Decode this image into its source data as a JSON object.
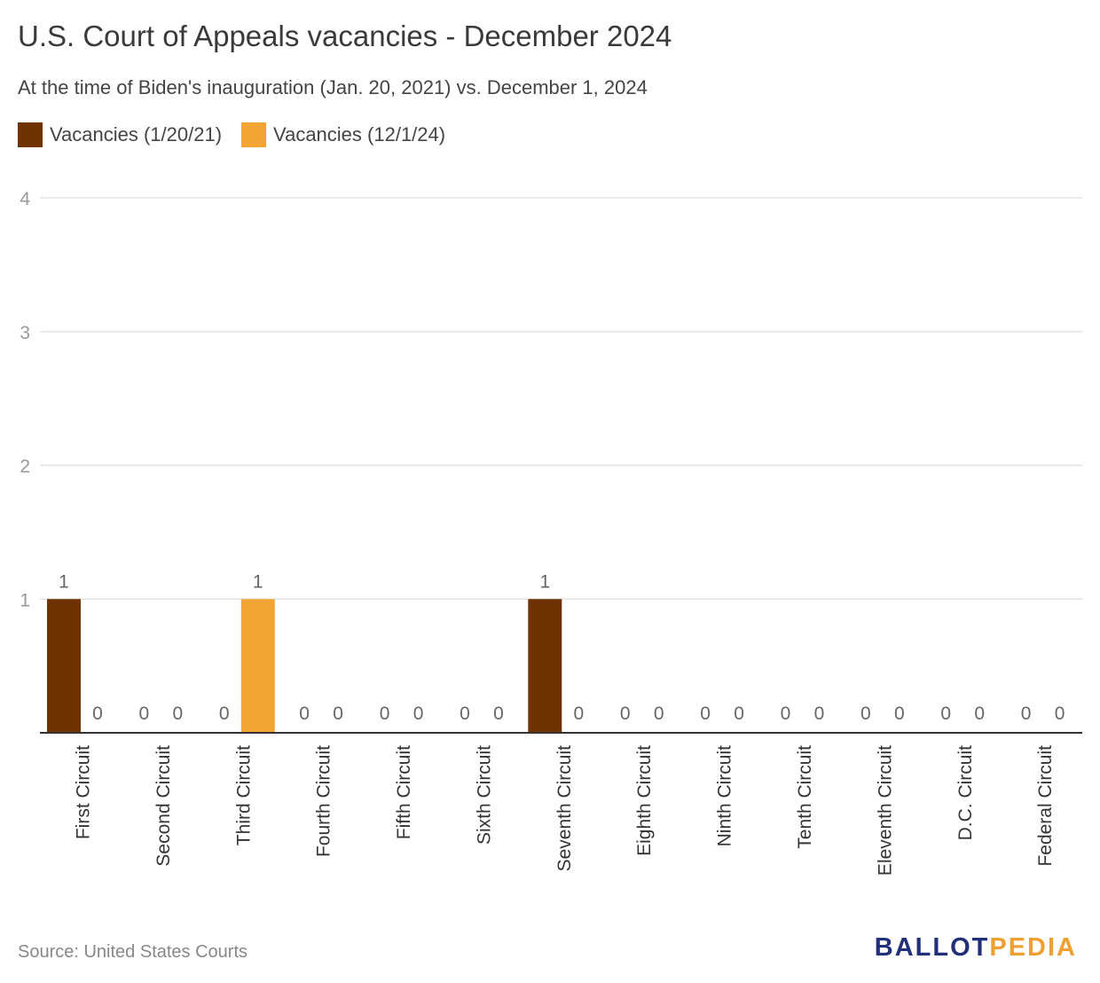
{
  "title": "U.S. Court of Appeals vacancies - December 2024",
  "subtitle": "At the time of Biden's inauguration (Jan. 20, 2021) vs. December 1, 2024",
  "source": "Source: United States Courts",
  "logo": {
    "part1": "BALLOT",
    "part2": "PEDIA"
  },
  "colors": {
    "series1": "#6e3300",
    "series2": "#f0a535",
    "grid": "#e3e3e3",
    "axis": "#333333",
    "tick_text": "#999999",
    "label_text": "#666666"
  },
  "chart_data": {
    "type": "bar",
    "categories": [
      "First Circuit",
      "Second Circuit",
      "Third Circuit",
      "Fourth Circuit",
      "Fifth Circuit",
      "Sixth Circuit",
      "Seventh Circuit",
      "Eighth Circuit",
      "Ninth Circuit",
      "Tenth Circuit",
      "Eleventh Circuit",
      "D.C. Circuit",
      "Federal Circuit"
    ],
    "series": [
      {
        "name": "Vacancies (1/20/21)",
        "values": [
          1,
          0,
          0,
          0,
          0,
          0,
          1,
          0,
          0,
          0,
          0,
          0,
          0
        ]
      },
      {
        "name": "Vacancies (12/1/24)",
        "values": [
          0,
          0,
          1,
          0,
          0,
          0,
          0,
          0,
          0,
          0,
          0,
          0,
          0
        ]
      }
    ],
    "ylim": [
      0,
      4
    ],
    "yticks": [
      1,
      2,
      3,
      4
    ],
    "grid": true,
    "legend_position": "top-left",
    "data_labels": true
  }
}
